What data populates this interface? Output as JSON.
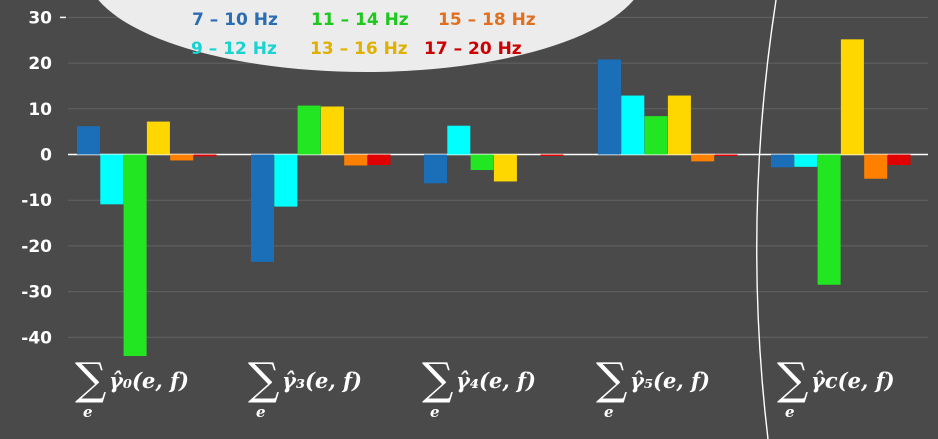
{
  "chart_data": {
    "type": "bar",
    "title": "",
    "xlabel": "",
    "ylabel": "",
    "ylim": [
      -45,
      31
    ],
    "yticks": [
      30,
      20,
      10,
      0,
      -10,
      -20,
      -30,
      -40
    ],
    "ytick_labels": [
      "30",
      "20",
      "10",
      "0",
      "-10",
      "-20",
      "-30",
      "-40"
    ],
    "grid": true,
    "legend_position": "top",
    "categories": [
      {
        "sum_symbol": "∑",
        "subscript": "e",
        "label": "γ̂₀(e, f)"
      },
      {
        "sum_symbol": "∑",
        "subscript": "e",
        "label": "γ̂₃(e, f)"
      },
      {
        "sum_symbol": "∑",
        "subscript": "e",
        "label": "γ̂₄(e, f)"
      },
      {
        "sum_symbol": "∑",
        "subscript": "e",
        "label": "γ̂₅(e, f)"
      },
      {
        "sum_symbol": "∑",
        "subscript": "e",
        "label": "γ̂c(e, f)"
      }
    ],
    "series": [
      {
        "name": "7 – 10 Hz",
        "color": "#1a6fb8",
        "values": [
          6.2,
          -23.5,
          -6.3,
          20.8,
          -2.8
        ]
      },
      {
        "name": "9 – 12 Hz",
        "color": "#00ffff",
        "values": [
          -10.9,
          -11.4,
          6.3,
          12.9,
          -2.7
        ]
      },
      {
        "name": "11 – 14 Hz",
        "color": "#22e622",
        "values": [
          -44.1,
          10.7,
          -3.4,
          8.4,
          -28.5
        ]
      },
      {
        "name": "13 – 16 Hz",
        "color": "#ffd700",
        "values": [
          7.2,
          10.5,
          -5.9,
          12.9,
          25.2
        ]
      },
      {
        "name": "15 – 18 Hz",
        "color": "#ff8000",
        "values": [
          -1.3,
          -2.4,
          0,
          -1.5,
          -5.3
        ]
      },
      {
        "name": "17 – 20 Hz",
        "color": "#e00000",
        "values": [
          -0.4,
          -2.3,
          -0.3,
          -0.3,
          -2.3
        ]
      }
    ],
    "legend_colors": {
      "7 – 10 Hz": "#2a6db0",
      "9 – 12 Hz": "#19d2d2",
      "11 – 14 Hz": "#1ec81e",
      "13 – 16 Hz": "#e0b000",
      "15 – 18 Hz": "#e07020",
      "17 – 20 Hz": "#cc0000"
    }
  }
}
